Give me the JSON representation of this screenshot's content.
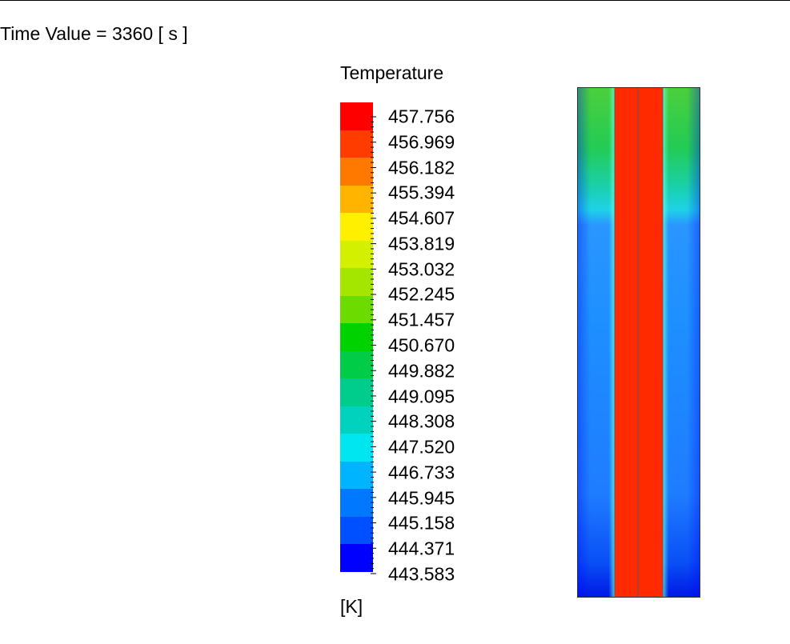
{
  "header": {
    "time_label": "Time Value = 3360 [ s ]"
  },
  "legend": {
    "title": "Temperature",
    "unit": "[K]",
    "values": [
      "457.756",
      "456.969",
      "456.182",
      "455.394",
      "454.607",
      "453.819",
      "453.032",
      "452.245",
      "451.457",
      "450.670",
      "449.882",
      "449.095",
      "448.308",
      "447.520",
      "446.733",
      "445.945",
      "445.158",
      "444.371",
      "443.583"
    ],
    "colormap": [
      "#ff0000",
      "#ff3c00",
      "#ff7800",
      "#ffb400",
      "#fff000",
      "#d2f000",
      "#a5e600",
      "#6cdc00",
      "#00d200",
      "#00cc47",
      "#00cc8c",
      "#00d2be",
      "#00e6f0",
      "#00b4ff",
      "#0078ff",
      "#0050ff",
      "#0000ff"
    ]
  },
  "contour": {
    "hot_color": "#ff2a00",
    "outer_top_color": "#4ccf3c",
    "outer_mid_color": "#1e90ff",
    "outer_bottom_color": "#0018e6"
  }
}
